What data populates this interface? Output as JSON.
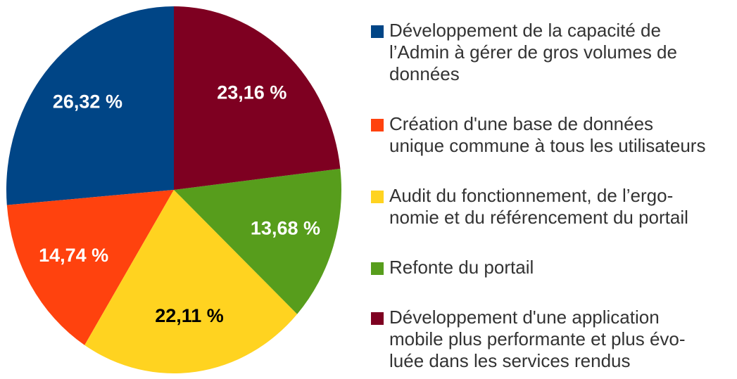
{
  "chart_data": {
    "type": "pie",
    "categories": [
      [
        "Développement de la capacité de",
        "l’Admin à gérer de gros volumes de",
        "données"
      ],
      [
        "Création d'une base de données",
        "unique commune à tous les utilisateurs"
      ],
      [
        "Audit du fonctionnement, de l’ergo-",
        "nomie et du référencement du portail"
      ],
      [
        "Refonte du portail"
      ],
      [
        "Développement d'une application",
        "mobile plus performante et plus évo-",
        "luée dans les services rendus"
      ]
    ],
    "values": [
      26.32,
      14.74,
      22.11,
      13.68,
      23.16
    ],
    "value_labels": [
      "26,32 %",
      "14,74 %",
      "22,11 %",
      "13,68 %",
      "23,16 %"
    ],
    "colors": [
      "#004586",
      "#ff420e",
      "#ffd320",
      "#579d1c",
      "#7e0021"
    ],
    "legend": "right"
  }
}
